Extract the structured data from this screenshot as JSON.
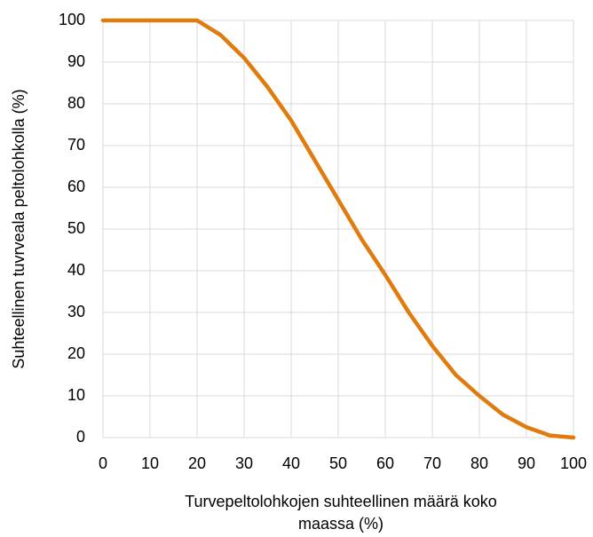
{
  "chart_data": {
    "type": "line",
    "x_label": [
      "Turvepeltolohkojen suhteellinen määrä koko",
      "maassa (%)"
    ],
    "y_label": "Suhteellinen tuvrveala peltolohkolla (%)",
    "x": [
      0,
      5,
      10,
      15,
      20,
      25,
      30,
      35,
      40,
      45,
      50,
      55,
      60,
      65,
      70,
      75,
      80,
      85,
      90,
      95,
      100
    ],
    "series": [
      {
        "color": "#e07b0e",
        "values": [
          100,
          100,
          100,
          100,
          100,
          96.5,
          91,
          84,
          76,
          66.5,
          57,
          47.5,
          39,
          30,
          22,
          15,
          10,
          5.5,
          2.5,
          0.5,
          0
        ]
      }
    ],
    "xlim": [
      0,
      100
    ],
    "ylim": [
      0,
      100
    ],
    "xticks": [
      0,
      10,
      20,
      30,
      40,
      50,
      60,
      70,
      80,
      90,
      100
    ],
    "yticks": [
      0,
      10,
      20,
      30,
      40,
      50,
      60,
      70,
      80,
      90,
      100
    ],
    "grid": true
  }
}
